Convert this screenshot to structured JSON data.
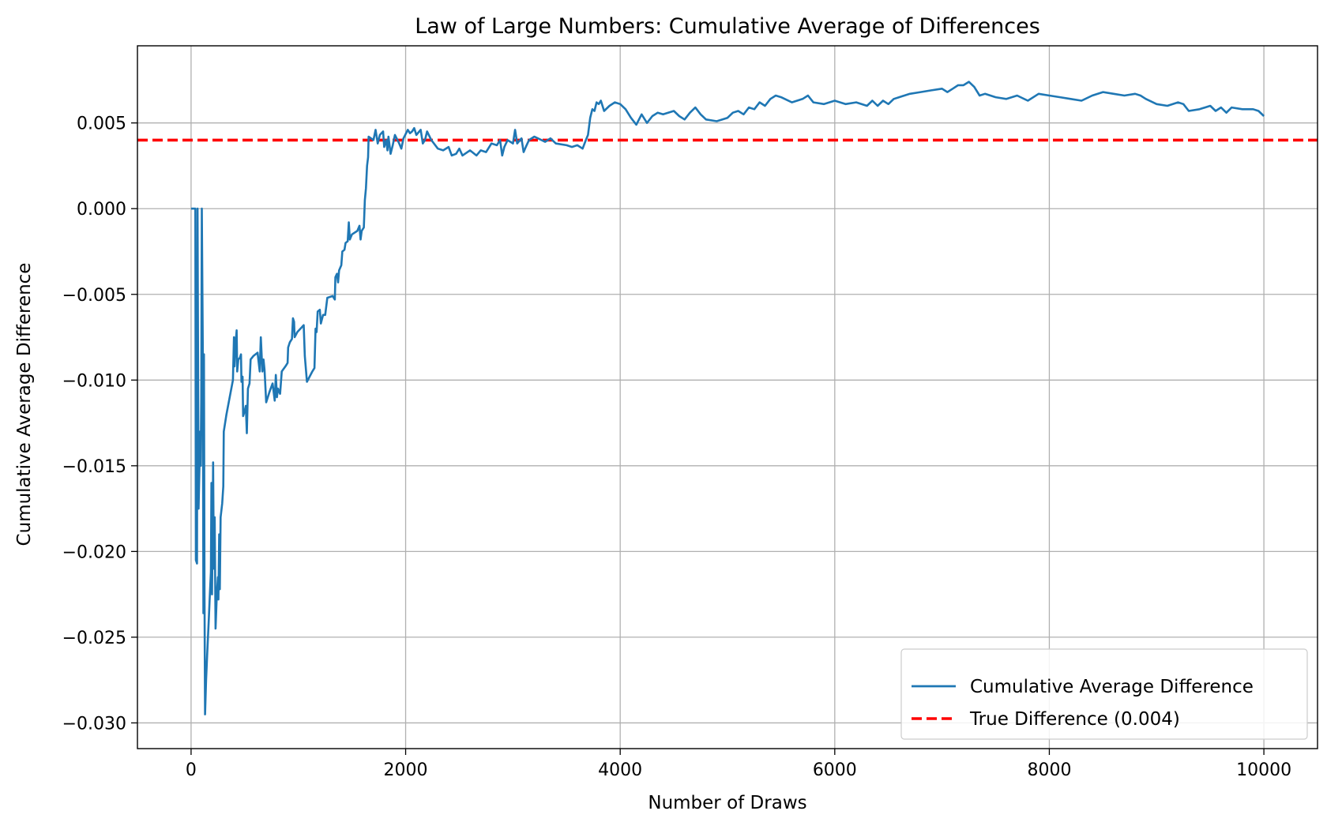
{
  "chart_data": {
    "type": "line",
    "title": "Law of Large Numbers: Cumulative Average of Differences",
    "xlabel": "Number of Draws",
    "ylabel": "Cumulative Average Difference",
    "xlim": [
      -500,
      10500
    ],
    "ylim": [
      -0.0315,
      0.0095
    ],
    "xticks": [
      0,
      2000,
      4000,
      6000,
      8000,
      10000
    ],
    "xtick_labels": [
      "0",
      "2000",
      "4000",
      "6000",
      "8000",
      "10000"
    ],
    "yticks": [
      0.005,
      0.0,
      -0.005,
      -0.01,
      -0.015,
      -0.02,
      -0.025,
      -0.03
    ],
    "ytick_labels": [
      "0.005",
      "0.000",
      "−0.005",
      "−0.010",
      "−0.015",
      "−0.020",
      "−0.025",
      "−0.030"
    ],
    "grid": true,
    "legend_position": "lower-right",
    "series": [
      {
        "name": "Cumulative Average Difference",
        "color": "#1f77b4",
        "style": "solid",
        "points": [
          [
            1,
            0.0
          ],
          [
            40,
            0.0
          ],
          [
            45,
            -0.0205
          ],
          [
            55,
            -0.0207
          ],
          [
            60,
            0.0
          ],
          [
            70,
            -0.0175
          ],
          [
            85,
            -0.013
          ],
          [
            90,
            -0.015
          ],
          [
            95,
            -0.011
          ],
          [
            100,
            0.0
          ],
          [
            110,
            -0.0085
          ],
          [
            115,
            -0.0236
          ],
          [
            120,
            -0.0085
          ],
          [
            125,
            -0.0224
          ],
          [
            130,
            -0.0295
          ],
          [
            140,
            -0.0275
          ],
          [
            150,
            -0.026
          ],
          [
            165,
            -0.024
          ],
          [
            175,
            -0.0225
          ],
          [
            185,
            -0.0212
          ],
          [
            190,
            -0.016
          ],
          [
            195,
            -0.0225
          ],
          [
            200,
            -0.0195
          ],
          [
            205,
            -0.0148
          ],
          [
            212,
            -0.021
          ],
          [
            220,
            -0.018
          ],
          [
            228,
            -0.0245
          ],
          [
            240,
            -0.0225
          ],
          [
            250,
            -0.0215
          ],
          [
            255,
            -0.0228
          ],
          [
            262,
            -0.019
          ],
          [
            268,
            -0.0222
          ],
          [
            275,
            -0.018
          ],
          [
            290,
            -0.0172
          ],
          [
            300,
            -0.0162
          ],
          [
            305,
            -0.013
          ],
          [
            330,
            -0.012
          ],
          [
            360,
            -0.011
          ],
          [
            390,
            -0.01
          ],
          [
            400,
            -0.0075
          ],
          [
            405,
            -0.0092
          ],
          [
            415,
            -0.0078
          ],
          [
            425,
            -0.0071
          ],
          [
            430,
            -0.0095
          ],
          [
            440,
            -0.0088
          ],
          [
            455,
            -0.0087
          ],
          [
            465,
            -0.0085
          ],
          [
            470,
            -0.0101
          ],
          [
            480,
            -0.0098
          ],
          [
            485,
            -0.0121
          ],
          [
            500,
            -0.0118
          ],
          [
            510,
            -0.0115
          ],
          [
            520,
            -0.0131
          ],
          [
            530,
            -0.0105
          ],
          [
            545,
            -0.0102
          ],
          [
            555,
            -0.0088
          ],
          [
            580,
            -0.0086
          ],
          [
            620,
            -0.0084
          ],
          [
            640,
            -0.0095
          ],
          [
            650,
            -0.0075
          ],
          [
            665,
            -0.0095
          ],
          [
            675,
            -0.0088
          ],
          [
            685,
            -0.0094
          ],
          [
            700,
            -0.0113
          ],
          [
            730,
            -0.0107
          ],
          [
            760,
            -0.0102
          ],
          [
            780,
            -0.0112
          ],
          [
            790,
            -0.0097
          ],
          [
            800,
            -0.011
          ],
          [
            810,
            -0.0105
          ],
          [
            830,
            -0.0108
          ],
          [
            845,
            -0.0095
          ],
          [
            880,
            -0.0092
          ],
          [
            900,
            -0.009
          ],
          [
            905,
            -0.0081
          ],
          [
            920,
            -0.0078
          ],
          [
            940,
            -0.0076
          ],
          [
            950,
            -0.0064
          ],
          [
            960,
            -0.0066
          ],
          [
            965,
            -0.0075
          ],
          [
            990,
            -0.0072
          ],
          [
            1050,
            -0.0068
          ],
          [
            1060,
            -0.0086
          ],
          [
            1080,
            -0.0101
          ],
          [
            1130,
            -0.0095
          ],
          [
            1150,
            -0.0093
          ],
          [
            1160,
            -0.007
          ],
          [
            1170,
            -0.0072
          ],
          [
            1180,
            -0.006
          ],
          [
            1200,
            -0.0059
          ],
          [
            1210,
            -0.0067
          ],
          [
            1230,
            -0.0062
          ],
          [
            1250,
            -0.0062
          ],
          [
            1270,
            -0.0052
          ],
          [
            1320,
            -0.0051
          ],
          [
            1340,
            -0.0053
          ],
          [
            1345,
            -0.004
          ],
          [
            1360,
            -0.0038
          ],
          [
            1370,
            -0.0043
          ],
          [
            1380,
            -0.0036
          ],
          [
            1400,
            -0.0033
          ],
          [
            1410,
            -0.0025
          ],
          [
            1430,
            -0.0024
          ],
          [
            1440,
            -0.002
          ],
          [
            1460,
            -0.0019
          ],
          [
            1470,
            -0.0008
          ],
          [
            1480,
            -0.0018
          ],
          [
            1500,
            -0.0015
          ],
          [
            1550,
            -0.0013
          ],
          [
            1570,
            -0.001
          ],
          [
            1580,
            -0.0018
          ],
          [
            1590,
            -0.0013
          ],
          [
            1610,
            -0.0011
          ],
          [
            1620,
            0.0005
          ],
          [
            1630,
            0.0012
          ],
          [
            1640,
            0.0025
          ],
          [
            1650,
            0.003
          ],
          [
            1655,
            0.0042
          ],
          [
            1700,
            0.004
          ],
          [
            1720,
            0.0046
          ],
          [
            1740,
            0.0038
          ],
          [
            1760,
            0.0043
          ],
          [
            1790,
            0.0045
          ],
          [
            1800,
            0.0036
          ],
          [
            1820,
            0.004
          ],
          [
            1830,
            0.0034
          ],
          [
            1840,
            0.0042
          ],
          [
            1860,
            0.0032
          ],
          [
            1880,
            0.0037
          ],
          [
            1900,
            0.0043
          ],
          [
            1940,
            0.0038
          ],
          [
            1960,
            0.0035
          ],
          [
            1980,
            0.0041
          ],
          [
            2020,
            0.0046
          ],
          [
            2040,
            0.0044
          ],
          [
            2060,
            0.0045
          ],
          [
            2080,
            0.0047
          ],
          [
            2100,
            0.0043
          ],
          [
            2140,
            0.0046
          ],
          [
            2160,
            0.0038
          ],
          [
            2180,
            0.004
          ],
          [
            2200,
            0.0045
          ],
          [
            2240,
            0.004
          ],
          [
            2300,
            0.0035
          ],
          [
            2350,
            0.0034
          ],
          [
            2400,
            0.0036
          ],
          [
            2430,
            0.0031
          ],
          [
            2470,
            0.0032
          ],
          [
            2500,
            0.0035
          ],
          [
            2530,
            0.0031
          ],
          [
            2600,
            0.0034
          ],
          [
            2660,
            0.0031
          ],
          [
            2700,
            0.0034
          ],
          [
            2750,
            0.0033
          ],
          [
            2800,
            0.0038
          ],
          [
            2850,
            0.0037
          ],
          [
            2880,
            0.004
          ],
          [
            2900,
            0.0031
          ],
          [
            2920,
            0.0036
          ],
          [
            2950,
            0.004
          ],
          [
            3000,
            0.0038
          ],
          [
            3020,
            0.0046
          ],
          [
            3040,
            0.0038
          ],
          [
            3080,
            0.0041
          ],
          [
            3100,
            0.0033
          ],
          [
            3120,
            0.0036
          ],
          [
            3150,
            0.004
          ],
          [
            3200,
            0.0042
          ],
          [
            3300,
            0.0039
          ],
          [
            3350,
            0.0041
          ],
          [
            3400,
            0.0038
          ],
          [
            3500,
            0.0037
          ],
          [
            3550,
            0.0036
          ],
          [
            3600,
            0.0037
          ],
          [
            3650,
            0.0035
          ],
          [
            3680,
            0.004
          ],
          [
            3700,
            0.0043
          ],
          [
            3720,
            0.0053
          ],
          [
            3740,
            0.0058
          ],
          [
            3760,
            0.0057
          ],
          [
            3780,
            0.0062
          ],
          [
            3800,
            0.0061
          ],
          [
            3820,
            0.0063
          ],
          [
            3850,
            0.0057
          ],
          [
            3900,
            0.006
          ],
          [
            3950,
            0.0062
          ],
          [
            4000,
            0.0061
          ],
          [
            4050,
            0.0058
          ],
          [
            4100,
            0.0053
          ],
          [
            4150,
            0.0049
          ],
          [
            4200,
            0.0055
          ],
          [
            4250,
            0.005
          ],
          [
            4300,
            0.0054
          ],
          [
            4350,
            0.0056
          ],
          [
            4400,
            0.0055
          ],
          [
            4500,
            0.0057
          ],
          [
            4550,
            0.0054
          ],
          [
            4600,
            0.0052
          ],
          [
            4650,
            0.0056
          ],
          [
            4700,
            0.0059
          ],
          [
            4750,
            0.0055
          ],
          [
            4800,
            0.0052
          ],
          [
            4900,
            0.0051
          ],
          [
            5000,
            0.0053
          ],
          [
            5050,
            0.0056
          ],
          [
            5100,
            0.0057
          ],
          [
            5150,
            0.0055
          ],
          [
            5200,
            0.0059
          ],
          [
            5250,
            0.0058
          ],
          [
            5300,
            0.0062
          ],
          [
            5350,
            0.006
          ],
          [
            5400,
            0.0064
          ],
          [
            5450,
            0.0066
          ],
          [
            5500,
            0.0065
          ],
          [
            5600,
            0.0062
          ],
          [
            5700,
            0.0064
          ],
          [
            5750,
            0.0066
          ],
          [
            5800,
            0.0062
          ],
          [
            5900,
            0.0061
          ],
          [
            6000,
            0.0063
          ],
          [
            6100,
            0.0061
          ],
          [
            6200,
            0.0062
          ],
          [
            6300,
            0.006
          ],
          [
            6350,
            0.0063
          ],
          [
            6400,
            0.006
          ],
          [
            6450,
            0.0063
          ],
          [
            6500,
            0.0061
          ],
          [
            6550,
            0.0064
          ],
          [
            6600,
            0.0065
          ],
          [
            6700,
            0.0067
          ],
          [
            6800,
            0.0068
          ],
          [
            6900,
            0.0069
          ],
          [
            7000,
            0.007
          ],
          [
            7050,
            0.0068
          ],
          [
            7100,
            0.007
          ],
          [
            7150,
            0.0072
          ],
          [
            7200,
            0.0072
          ],
          [
            7250,
            0.0074
          ],
          [
            7300,
            0.0071
          ],
          [
            7350,
            0.0066
          ],
          [
            7400,
            0.0067
          ],
          [
            7500,
            0.0065
          ],
          [
            7600,
            0.0064
          ],
          [
            7700,
            0.0066
          ],
          [
            7800,
            0.0063
          ],
          [
            7900,
            0.0067
          ],
          [
            8000,
            0.0066
          ],
          [
            8100,
            0.0065
          ],
          [
            8200,
            0.0064
          ],
          [
            8300,
            0.0063
          ],
          [
            8400,
            0.0066
          ],
          [
            8500,
            0.0068
          ],
          [
            8600,
            0.0067
          ],
          [
            8700,
            0.0066
          ],
          [
            8800,
            0.0067
          ],
          [
            8850,
            0.0066
          ],
          [
            8900,
            0.0064
          ],
          [
            9000,
            0.0061
          ],
          [
            9100,
            0.006
          ],
          [
            9200,
            0.0062
          ],
          [
            9250,
            0.0061
          ],
          [
            9300,
            0.0057
          ],
          [
            9400,
            0.0058
          ],
          [
            9500,
            0.006
          ],
          [
            9550,
            0.0057
          ],
          [
            9600,
            0.0059
          ],
          [
            9650,
            0.0056
          ],
          [
            9700,
            0.0059
          ],
          [
            9800,
            0.0058
          ],
          [
            9900,
            0.0058
          ],
          [
            9950,
            0.0057
          ],
          [
            10000,
            0.0054
          ]
        ]
      },
      {
        "name": "True Difference (0.004)",
        "color": "#ff0000",
        "style": "dashed",
        "value": 0.004
      }
    ]
  }
}
